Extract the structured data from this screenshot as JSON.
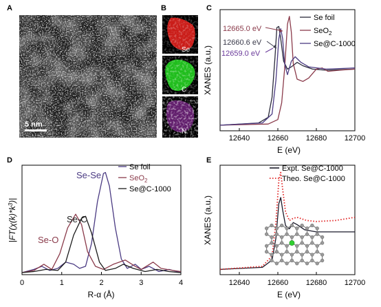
{
  "panels": {
    "A": {
      "letter": "A",
      "scale_bar_label": "5 nm"
    },
    "B": {
      "letter": "B",
      "maps": [
        {
          "element": "Se",
          "color": "#e0201c"
        },
        {
          "element": "C",
          "color": "#22d11f"
        },
        {
          "element": "N",
          "color": "#b034c4"
        }
      ]
    },
    "C": {
      "letter": "C"
    },
    "D": {
      "letter": "D"
    },
    "E": {
      "letter": "E"
    }
  },
  "chart_data": [
    {
      "panel": "C",
      "type": "line",
      "xlabel": "E (eV)",
      "ylabel": "XANES (a.u.)",
      "xlim": [
        12630,
        12700
      ],
      "xticks": [
        12640,
        12660,
        12680,
        12700
      ],
      "legend_position": "top-right",
      "series": [
        {
          "name": "Se foil",
          "color": "#2a2a3a",
          "edge": 12659.0,
          "points": [
            [
              12630,
              0.05
            ],
            [
              12650,
              0.07
            ],
            [
              12655,
              0.12
            ],
            [
              12657,
              0.3
            ],
            [
              12658.5,
              0.65
            ],
            [
              12659.5,
              0.92
            ],
            [
              12660.5,
              0.93
            ],
            [
              12661.5,
              0.82
            ],
            [
              12663,
              0.62
            ],
            [
              12665,
              0.55
            ],
            [
              12667,
              0.57
            ],
            [
              12670,
              0.61
            ],
            [
              12673,
              0.58
            ],
            [
              12678,
              0.55
            ],
            [
              12685,
              0.54
            ],
            [
              12700,
              0.55
            ]
          ]
        },
        {
          "name": "SeO$_2$",
          "color": "#8a3a4a",
          "edge": 12665.0,
          "points": [
            [
              12630,
              0.05
            ],
            [
              12655,
              0.06
            ],
            [
              12660,
              0.1
            ],
            [
              12662,
              0.25
            ],
            [
              12663.5,
              0.55
            ],
            [
              12665,
              0.95
            ],
            [
              12666,
              1.02
            ],
            [
              12667,
              0.88
            ],
            [
              12668,
              0.6
            ],
            [
              12670,
              0.46
            ],
            [
              12673,
              0.44
            ],
            [
              12676,
              0.47
            ],
            [
              12680,
              0.55
            ],
            [
              12683,
              0.56
            ],
            [
              12686,
              0.53
            ],
            [
              12692,
              0.54
            ],
            [
              12700,
              0.55
            ]
          ]
        },
        {
          "name": "Se@C-1000",
          "color": "#4a3a82",
          "edge": 12660.6,
          "points": [
            [
              12630,
              0.05
            ],
            [
              12652,
              0.07
            ],
            [
              12657,
              0.15
            ],
            [
              12659,
              0.45
            ],
            [
              12660.5,
              0.82
            ],
            [
              12661.5,
              0.91
            ],
            [
              12662.5,
              0.82
            ],
            [
              12663.5,
              0.6
            ],
            [
              12665,
              0.5
            ],
            [
              12667,
              0.62
            ],
            [
              12669,
              0.66
            ],
            [
              12672,
              0.61
            ],
            [
              12676,
              0.57
            ],
            [
              12685,
              0.55
            ],
            [
              12700,
              0.56
            ]
          ]
        }
      ],
      "annotations": [
        {
          "text": "12665.0 eV",
          "color": "#8a3a4a"
        },
        {
          "text": "12660.6 eV",
          "color": "#3a3a4a"
        },
        {
          "text": "12659.0 eV",
          "color": "#6a3a9a"
        }
      ]
    },
    {
      "panel": "D",
      "type": "line",
      "xlabel": "R-α (Å)",
      "ylabel": "|FT(χ(k)*k³)|",
      "xlim": [
        0,
        4
      ],
      "xticks": [
        0,
        1,
        2,
        3,
        4
      ],
      "legend_position": "top-right",
      "series": [
        {
          "name": "Se foil",
          "color": "#4a3a82",
          "points": [
            [
              0,
              0.02
            ],
            [
              0.3,
              0.05
            ],
            [
              0.5,
              0.08
            ],
            [
              0.7,
              0.04
            ],
            [
              0.9,
              0.06
            ],
            [
              1.1,
              0.12
            ],
            [
              1.3,
              0.1
            ],
            [
              1.45,
              0.06
            ],
            [
              1.6,
              0.08
            ],
            [
              1.75,
              0.3
            ],
            [
              1.9,
              0.7
            ],
            [
              2.05,
              0.97
            ],
            [
              2.1,
              0.98
            ],
            [
              2.2,
              0.85
            ],
            [
              2.35,
              0.45
            ],
            [
              2.5,
              0.15
            ],
            [
              2.65,
              0.06
            ],
            [
              2.85,
              0.1
            ],
            [
              3.0,
              0.05
            ],
            [
              3.2,
              0.08
            ],
            [
              3.45,
              0.03
            ],
            [
              3.7,
              0.05
            ],
            [
              4,
              0.02
            ]
          ]
        },
        {
          "name": "SeO$_2$",
          "color": "#8a3a4a",
          "points": [
            [
              0,
              0.02
            ],
            [
              0.3,
              0.04
            ],
            [
              0.55,
              0.1
            ],
            [
              0.75,
              0.05
            ],
            [
              0.95,
              0.2
            ],
            [
              1.15,
              0.45
            ],
            [
              1.35,
              0.58
            ],
            [
              1.5,
              0.48
            ],
            [
              1.65,
              0.22
            ],
            [
              1.85,
              0.08
            ],
            [
              2.05,
              0.05
            ],
            [
              2.3,
              0.1
            ],
            [
              2.6,
              0.14
            ],
            [
              2.85,
              0.08
            ],
            [
              3.0,
              0.05
            ],
            [
              3.3,
              0.12
            ],
            [
              3.5,
              0.06
            ],
            [
              3.8,
              0.04
            ],
            [
              4,
              0.03
            ]
          ]
        },
        {
          "name": "Se@C-1000",
          "color": "#1a1a1a",
          "points": [
            [
              0,
              0.02
            ],
            [
              0.3,
              0.03
            ],
            [
              0.6,
              0.05
            ],
            [
              0.9,
              0.04
            ],
            [
              1.1,
              0.12
            ],
            [
              1.3,
              0.38
            ],
            [
              1.5,
              0.54
            ],
            [
              1.6,
              0.56
            ],
            [
              1.75,
              0.4
            ],
            [
              1.95,
              0.12
            ],
            [
              2.1,
              0.04
            ],
            [
              2.35,
              0.06
            ],
            [
              2.55,
              0.1
            ],
            [
              2.8,
              0.06
            ],
            [
              3.1,
              0.03
            ],
            [
              3.4,
              0.05
            ],
            [
              3.7,
              0.03
            ],
            [
              4,
              0.02
            ]
          ]
        }
      ],
      "annotations": [
        {
          "text": "Se-Se",
          "color": "#4a3a82"
        },
        {
          "text": "Se-C",
          "color": "#1a1a1a"
        },
        {
          "text": "Se-O",
          "color": "#8a3a4a"
        }
      ]
    },
    {
      "panel": "E",
      "type": "line",
      "xlabel": "E (eV)",
      "ylabel": "XANES (a.u.)",
      "xlim": [
        12630,
        12700
      ],
      "xticks": [
        12640,
        12660,
        12680,
        12700
      ],
      "legend_position": "top-right",
      "series": [
        {
          "name": "Expt. Se@C-1000",
          "color": "#1a1a2a",
          "style": "solid",
          "points": [
            [
              12630,
              0.05
            ],
            [
              12652,
              0.07
            ],
            [
              12657,
              0.14
            ],
            [
              12659,
              0.35
            ],
            [
              12660.5,
              0.68
            ],
            [
              12661.5,
              0.74
            ],
            [
              12662.5,
              0.62
            ],
            [
              12664,
              0.47
            ],
            [
              12666,
              0.44
            ],
            [
              12668,
              0.5
            ],
            [
              12670,
              0.48
            ],
            [
              12674,
              0.43
            ],
            [
              12680,
              0.41
            ],
            [
              12690,
              0.41
            ],
            [
              12700,
              0.41
            ]
          ]
        },
        {
          "name": "Theo. Se@C-1000",
          "color": "#e02020",
          "style": "dotted",
          "points": [
            [
              12630,
              0.05
            ],
            [
              12652,
              0.08
            ],
            [
              12657,
              0.18
            ],
            [
              12659,
              0.5
            ],
            [
              12660.5,
              0.9
            ],
            [
              12661.5,
              0.98
            ],
            [
              12662.5,
              0.82
            ],
            [
              12664,
              0.6
            ],
            [
              12666,
              0.52
            ],
            [
              12668,
              0.54
            ],
            [
              12670,
              0.55
            ],
            [
              12675,
              0.52
            ],
            [
              12680,
              0.51
            ],
            [
              12690,
              0.52
            ],
            [
              12700,
              0.55
            ]
          ]
        }
      ]
    }
  ]
}
